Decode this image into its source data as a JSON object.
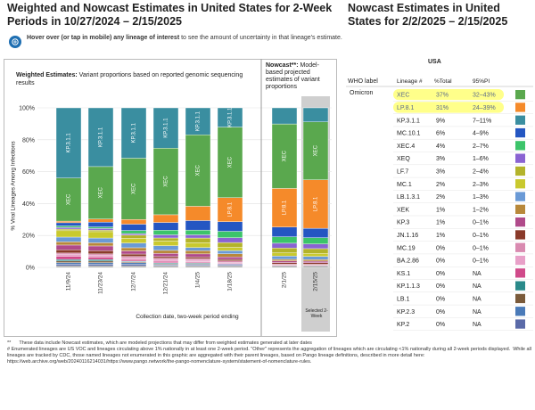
{
  "title_left": "Weighted and Nowcast Estimates in United States for 2-Week Periods in 10/27/2024 – 2/15/2025",
  "title_right": "Nowcast Estimates in United States for 2/2/2025 – 2/15/2025",
  "hover_text": "Hover over (or tap in mobile) any lineage of interest to see the amount of uncertainty in that lineage's estimate.",
  "weighted_label_bold": "Weighted Estimates:",
  "weighted_label_rest": " Variant proportions based on reported genomic sequencing results",
  "nowcast_label_bold": "Nowcast**:",
  "nowcast_label_rest": " Model-based projected estimates of variant proportions",
  "ylabel": "% Viral Lineages Among Infections",
  "xlabel": "Collection date, two-week period ending",
  "selected_label": "Selected 2-Week",
  "table": {
    "region": "USA",
    "headers": [
      "WHO label",
      "Lineage #",
      "%Total",
      "95%PI"
    ],
    "who_label": "Omicron",
    "rows": [
      {
        "lineage": "XEC",
        "total": "37%",
        "pi": "32–43%",
        "color": "#5aa84e",
        "highlight": true
      },
      {
        "lineage": "LP.8.1",
        "total": "31%",
        "pi": "24–39%",
        "color": "#f58a2a",
        "highlight": true
      },
      {
        "lineage": "KP.3.1.1",
        "total": "9%",
        "pi": "7–11%",
        "color": "#3a8ea0",
        "highlight": false
      },
      {
        "lineage": "MC.10.1",
        "total": "6%",
        "pi": "4–9%",
        "color": "#2456c2",
        "highlight": false
      },
      {
        "lineage": "XEC.4",
        "total": "4%",
        "pi": "2–7%",
        "color": "#3cc46a",
        "highlight": false
      },
      {
        "lineage": "XEQ",
        "total": "3%",
        "pi": "1–6%",
        "color": "#8a63d2",
        "highlight": false
      },
      {
        "lineage": "LF.7",
        "total": "3%",
        "pi": "2–4%",
        "color": "#b3b32a",
        "highlight": false
      },
      {
        "lineage": "MC.1",
        "total": "2%",
        "pi": "2–3%",
        "color": "#c9c92e",
        "highlight": false
      },
      {
        "lineage": "LB.1.3.1",
        "total": "2%",
        "pi": "1–3%",
        "color": "#6a9ad6",
        "highlight": false
      },
      {
        "lineage": "XEK",
        "total": "1%",
        "pi": "1–2%",
        "color": "#b8883a",
        "highlight": false
      },
      {
        "lineage": "KP.3",
        "total": "1%",
        "pi": "0–1%",
        "color": "#b04a8a",
        "highlight": false
      },
      {
        "lineage": "JN.1.16",
        "total": "1%",
        "pi": "0–1%",
        "color": "#8a3a2a",
        "highlight": false
      },
      {
        "lineage": "MC.19",
        "total": "0%",
        "pi": "0–1%",
        "color": "#d98ab0",
        "highlight": false
      },
      {
        "lineage": "BA.2.86",
        "total": "0%",
        "pi": "0–1%",
        "color": "#e8a0c8",
        "highlight": false
      },
      {
        "lineage": "KS.1",
        "total": "0%",
        "pi": "NA",
        "color": "#d04a8a",
        "highlight": false
      },
      {
        "lineage": "KP.1.1.3",
        "total": "0%",
        "pi": "NA",
        "color": "#2a8a8a",
        "highlight": false
      },
      {
        "lineage": "LB.1",
        "total": "0%",
        "pi": "NA",
        "color": "#7a5a3a",
        "highlight": false
      },
      {
        "lineage": "KP.2.3",
        "total": "0%",
        "pi": "NA",
        "color": "#4a7ab8",
        "highlight": false
      },
      {
        "lineage": "KP.2",
        "total": "0%",
        "pi": "NA",
        "color": "#5a6aa8",
        "highlight": false
      }
    ]
  },
  "footnote": "**      These data include Nowcast estimates, which are modeled projections that may differ from weighted estimates generated at later dates\n# Enumerated lineages are US VOC and lineages circulating above 1% nationally in at least one 2-week period. \"Other\" represents the aggregation of lineages which are circulating <1% nationally during all 2-week periods displayed.  While all lineages are tracked by CDC, those named lineages not enumerated in this graphic are aggregated with their parent lineages, based on Pango lineage definitions, described in more detail here: https://web.archive.org/web/20240116214031/https://www.pango.network/the-pango-nomenclature-system/statement-of-nomenclature-rules.",
  "chart_data": {
    "type": "bar",
    "stacked": true,
    "ylim": [
      0,
      100
    ],
    "yticks": [
      "0%",
      "20%",
      "40%",
      "60%",
      "80%",
      "100%"
    ],
    "categories": [
      "11/9/24",
      "11/23/24",
      "12/7/24",
      "12/21/24",
      "1/4/25",
      "1/18/25",
      "2/1/25",
      "2/15/25"
    ],
    "nowcast_from_index": 6,
    "series": [
      {
        "name": "Other",
        "color": "#9a9a9a",
        "values": [
          1,
          1,
          1,
          1,
          1,
          1,
          1,
          1
        ]
      },
      {
        "name": "KP.2",
        "color": "#5a6aa8",
        "values": [
          1,
          1,
          1,
          0.5,
          0.5,
          0.5,
          0,
          0
        ]
      },
      {
        "name": "KP.2.3",
        "color": "#4a7ab8",
        "values": [
          1,
          1,
          1,
          0.5,
          0.5,
          0.5,
          0,
          0
        ]
      },
      {
        "name": "LB.1",
        "color": "#7a5a3a",
        "values": [
          1,
          1,
          0.5,
          0.5,
          0.5,
          0,
          0,
          0
        ]
      },
      {
        "name": "KP.1.1.3",
        "color": "#2a8a8a",
        "values": [
          1,
          1,
          0.5,
          0.5,
          0.5,
          0,
          0,
          0
        ]
      },
      {
        "name": "KS.1",
        "color": "#d04a8a",
        "values": [
          2,
          1.5,
          1,
          1,
          0.5,
          0.5,
          0,
          0
        ]
      },
      {
        "name": "BA.2.86",
        "color": "#e8a0c8",
        "values": [
          1,
          1,
          1,
          1,
          1,
          0.5,
          0.5,
          0.5
        ]
      },
      {
        "name": "MC.19",
        "color": "#d98ab0",
        "values": [
          1,
          1,
          1,
          1,
          1,
          1,
          0.5,
          0.5
        ]
      },
      {
        "name": "JN.1.16",
        "color": "#8a3a2a",
        "values": [
          2,
          2,
          1.5,
          1,
          1,
          1,
          1,
          1
        ]
      },
      {
        "name": "KP.3",
        "color": "#b04a8a",
        "values": [
          3,
          3,
          2,
          2,
          2,
          1.5,
          1,
          1
        ]
      },
      {
        "name": "XEK",
        "color": "#b8883a",
        "values": [
          2,
          2,
          2,
          2,
          2,
          2,
          1,
          1
        ]
      },
      {
        "name": "LB.1.3.1",
        "color": "#6a9ad6",
        "values": [
          3,
          3,
          3,
          3,
          2,
          2,
          2,
          2
        ]
      },
      {
        "name": "MC.1",
        "color": "#c9c92e",
        "values": [
          4,
          4,
          3,
          3,
          3,
          2,
          2,
          2
        ]
      },
      {
        "name": "LF.7",
        "color": "#b3b32a",
        "values": [
          1,
          1,
          2,
          2,
          3,
          3,
          3,
          3
        ]
      },
      {
        "name": "XEQ",
        "color": "#8a63d2",
        "values": [
          1,
          1,
          1,
          2,
          2,
          3,
          3,
          3
        ]
      },
      {
        "name": "XEC.4",
        "color": "#3cc46a",
        "values": [
          1,
          1,
          2,
          3,
          3,
          4,
          4,
          4
        ]
      },
      {
        "name": "MC.10.1",
        "color": "#2456c2",
        "values": [
          2,
          3,
          4,
          5,
          6,
          6,
          6,
          6
        ]
      },
      {
        "name": "LP.8.1",
        "color": "#f58a2a",
        "values": [
          1,
          2,
          3,
          5,
          9,
          15,
          24,
          31
        ]
      },
      {
        "name": "XEC",
        "color": "#5aa84e",
        "values": [
          27,
          33,
          39,
          43,
          45,
          44,
          40,
          37
        ]
      },
      {
        "name": "KP.3.1.1",
        "color": "#3a8ea0",
        "values": [
          44,
          37,
          32,
          26,
          17,
          12,
          10,
          9
        ]
      }
    ],
    "bar_labels": [
      {
        "series": "KP.3.1.1",
        "indices": [
          0,
          1,
          2,
          3,
          4,
          5
        ]
      },
      {
        "series": "XEC",
        "indices": [
          0,
          1,
          2,
          3,
          4,
          5,
          6,
          7
        ]
      },
      {
        "series": "LP.8.1",
        "indices": [
          5,
          6,
          7
        ]
      }
    ]
  }
}
